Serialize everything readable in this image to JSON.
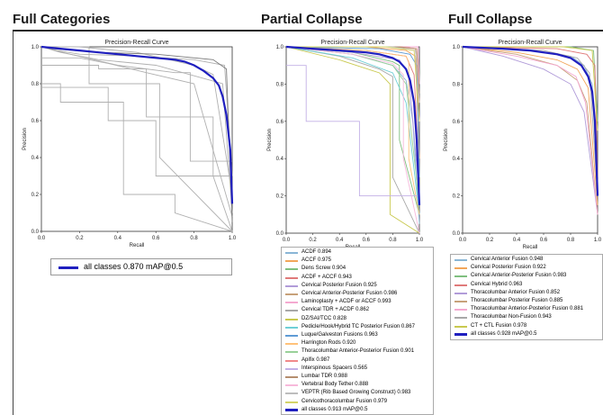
{
  "sections": [
    {
      "title": "Full Categories"
    },
    {
      "title": "Partial Collapse"
    },
    {
      "title": "Full Collapse"
    }
  ],
  "colors": {
    "accent": "#1f1fbf",
    "grey": "#b0b0b0",
    "dark": "#7a7a7a"
  },
  "chart_data": [
    {
      "type": "line",
      "title": "Precision-Recall Curve",
      "xlabel": "Recall",
      "ylabel": "Precision",
      "xlim": [
        0,
        1
      ],
      "ylim": [
        0,
        1
      ],
      "xticks": [
        "0.0",
        "0.2",
        "0.4",
        "0.6",
        "0.8",
        "1.0"
      ],
      "yticks": [
        "0.0",
        "0.2",
        "0.4",
        "0.6",
        "0.8",
        "1.0"
      ],
      "grid": false,
      "legend_placement": "below",
      "series": [
        {
          "name": "all classes 0.870 mAP@0.5",
          "color": "#1f1fbf",
          "emphasis": true,
          "x": [
            0,
            0.1,
            0.2,
            0.3,
            0.4,
            0.5,
            0.6,
            0.7,
            0.75,
            0.8,
            0.85,
            0.9,
            0.93,
            0.95,
            0.97,
            0.99,
            1.0
          ],
          "y": [
            1,
            0.99,
            0.98,
            0.97,
            0.96,
            0.95,
            0.94,
            0.93,
            0.92,
            0.9,
            0.87,
            0.83,
            0.79,
            0.73,
            0.63,
            0.44,
            0.15
          ]
        },
        {
          "color": "#b0b0b0",
          "x": [
            0,
            0.2,
            0.5,
            0.8,
            0.9,
            1.0
          ],
          "y": [
            1,
            1,
            0.97,
            0.9,
            0.85,
            0.2
          ]
        },
        {
          "color": "#b0b0b0",
          "x": [
            0,
            0.1,
            0.3,
            0.6,
            0.95,
            1.0
          ],
          "y": [
            1,
            0.97,
            0.93,
            0.9,
            0.8,
            0.1
          ]
        },
        {
          "color": "#b0b0b0",
          "x": [
            0,
            0.2,
            0.35,
            0.55,
            0.8,
            1.0
          ],
          "y": [
            0.94,
            0.94,
            0.91,
            0.86,
            0.8,
            0.08
          ]
        },
        {
          "color": "#b0b0b0",
          "x": [
            0,
            0.25,
            0.25,
            0.62,
            0.62,
            1.0
          ],
          "y": [
            1,
            1,
            0.8,
            0.8,
            0.4,
            0
          ]
        },
        {
          "color": "#b0b0b0",
          "x": [
            0,
            0.1,
            0.1,
            0.43,
            0.43,
            0.7,
            0.7,
            1.0
          ],
          "y": [
            0.8,
            0.8,
            0.7,
            0.7,
            0.2,
            0.2,
            0.1,
            0
          ]
        },
        {
          "color": "#b0b0b0",
          "x": [
            0,
            0.3,
            0.3,
            0.55,
            0.55,
            0.9,
            0.9,
            1.0
          ],
          "y": [
            0.9,
            0.9,
            0.88,
            0.88,
            0.62,
            0.62,
            0.3,
            0
          ]
        },
        {
          "color": "#b0b0b0",
          "x": [
            0,
            0.15,
            0.4,
            0.7,
            0.78,
            0.78,
            1.0
          ],
          "y": [
            1,
            0.96,
            0.9,
            0.86,
            0.86,
            0.38,
            0.38
          ]
        },
        {
          "color": "#b0b0b0",
          "x": [
            0,
            0.08,
            0.2,
            0.5,
            0.8,
            0.96,
            1.0
          ],
          "y": [
            1,
            0.98,
            0.96,
            0.95,
            0.93,
            0.9,
            0.3
          ]
        },
        {
          "color": "#7a7a7a",
          "x": [
            0,
            0.05,
            0.3,
            0.6,
            0.9,
            0.97,
            1.0
          ],
          "y": [
            1,
            0.99,
            0.97,
            0.96,
            0.93,
            0.88,
            0.05
          ]
        },
        {
          "color": "#b0b0b0",
          "x": [
            0,
            0.35,
            0.35,
            0.6,
            0.6,
            1.0
          ],
          "y": [
            0.78,
            0.78,
            0.6,
            0.6,
            0.3,
            0.3
          ]
        }
      ]
    },
    {
      "type": "line",
      "title": "Precision-Recall Curve",
      "xlabel": "Recall",
      "ylabel": "Precision",
      "xlim": [
        0,
        1
      ],
      "ylim": [
        0,
        1
      ],
      "xticks": [
        "0.0",
        "0.2",
        "0.4",
        "0.6",
        "0.8",
        "1.0"
      ],
      "yticks": [
        "0.0",
        "0.2",
        "0.4",
        "0.6",
        "0.8",
        "1.0"
      ],
      "grid": false,
      "legend_placement": "below",
      "series": [
        {
          "name": "ACDF 0.894",
          "color": "#8ab6d6",
          "x": [
            0,
            0.5,
            0.8,
            0.9,
            0.95,
            1.0
          ],
          "y": [
            1,
            0.96,
            0.9,
            0.82,
            0.6,
            0.05
          ]
        },
        {
          "name": "ACCF 0.975",
          "color": "#f2a65a",
          "x": [
            0,
            0.6,
            0.9,
            0.97,
            1.0
          ],
          "y": [
            1,
            1,
            0.98,
            0.95,
            0.4
          ]
        },
        {
          "name": "Dens Screw 0.904",
          "color": "#7fbf7f",
          "x": [
            0,
            0.5,
            0.8,
            0.85,
            0.85,
            1.0
          ],
          "y": [
            1,
            0.97,
            0.92,
            0.9,
            0.5,
            0.1
          ]
        },
        {
          "name": "ACDF + ACCF 0.943",
          "color": "#e07a7a",
          "x": [
            0,
            0.6,
            0.9,
            0.96,
            1.0
          ],
          "y": [
            1,
            0.98,
            0.95,
            0.85,
            0.3
          ]
        },
        {
          "name": "Cervical Posterior Fusion 0.925",
          "color": "#b19cd9",
          "x": [
            0,
            0.5,
            0.85,
            0.92,
            1.0
          ],
          "y": [
            1,
            0.97,
            0.93,
            0.85,
            0.2
          ]
        },
        {
          "name": "Cervical Anterior-Posterior Fusion 0.986",
          "color": "#c7a17a",
          "x": [
            0,
            0.8,
            0.97,
            1.0
          ],
          "y": [
            1,
            1,
            0.99,
            0.6
          ]
        },
        {
          "name": "Laminoplasty + ACDF or ACCF 0.993",
          "color": "#f4a9d0",
          "x": [
            0,
            0.9,
            0.99,
            1.0
          ],
          "y": [
            1,
            1,
            1,
            0.8
          ]
        },
        {
          "name": "Cervical TDR + ACDF 0.862",
          "color": "#a8a8a8",
          "x": [
            0,
            0.4,
            0.7,
            0.8,
            0.8,
            1.0
          ],
          "y": [
            1,
            0.95,
            0.88,
            0.84,
            0.3,
            0
          ]
        },
        {
          "name": "DZ/SAI/TCC 0.828",
          "color": "#c9c94f",
          "x": [
            0,
            0.4,
            0.7,
            0.78,
            0.78,
            1.0
          ],
          "y": [
            1,
            0.93,
            0.86,
            0.8,
            0.1,
            0
          ]
        },
        {
          "name": "Pedicle/Hook/Hybrid TC Posterior Fusion 0.867",
          "color": "#6fcfd6",
          "x": [
            0,
            0.5,
            0.8,
            0.9,
            1.0
          ],
          "y": [
            1,
            0.94,
            0.86,
            0.7,
            0.1
          ]
        },
        {
          "name": "Luque/Galveston Fusions 0.963",
          "color": "#5f9bd5",
          "x": [
            0,
            0.7,
            0.93,
            0.98,
            1.0
          ],
          "y": [
            1,
            0.99,
            0.96,
            0.9,
            0.3
          ]
        },
        {
          "name": "Harrington Rods 0.920",
          "color": "#ffc27a",
          "x": [
            0,
            0.6,
            0.9,
            0.92,
            0.92,
            1.0
          ],
          "y": [
            1,
            0.98,
            0.95,
            0.92,
            0.4,
            0.1
          ]
        },
        {
          "name": "Thoracolumbar Anterior-Posterior Fusion 0.901",
          "color": "#9ad19a",
          "x": [
            0,
            0.5,
            0.8,
            0.9,
            1.0
          ],
          "y": [
            1,
            0.96,
            0.9,
            0.8,
            0.15
          ]
        },
        {
          "name": "Apifix 0.987",
          "color": "#f08a8a",
          "x": [
            0,
            0.85,
            0.98,
            1.0
          ],
          "y": [
            1,
            1,
            0.99,
            0.7
          ]
        },
        {
          "name": "Interspinous Spacers 0.565",
          "color": "#c2b0e6",
          "x": [
            0,
            0.15,
            0.15,
            0.55,
            0.55,
            1.0
          ],
          "y": [
            0.9,
            0.9,
            0.6,
            0.6,
            0.2,
            0.2
          ]
        },
        {
          "name": "Lumbar TDR 0.988",
          "color": "#b58e6f",
          "x": [
            0,
            0.85,
            0.98,
            1.0
          ],
          "y": [
            1,
            1,
            0.99,
            0.75
          ]
        },
        {
          "name": "Vertebral Body Tether 0.888",
          "color": "#f7b9db",
          "x": [
            0,
            0.5,
            0.8,
            0.88,
            0.88,
            1.0
          ],
          "y": [
            1,
            0.96,
            0.91,
            0.85,
            0.4,
            0
          ]
        },
        {
          "name": "VEPTR (Rib Based Growing Construct) 0.983",
          "color": "#bdbdbd",
          "x": [
            0,
            0.8,
            0.97,
            1.0
          ],
          "y": [
            1,
            1,
            0.98,
            0.7
          ]
        },
        {
          "name": "Cervicothoracolumbar Fusion 0.979",
          "color": "#d4d468",
          "x": [
            0,
            0.75,
            0.96,
            1.0
          ],
          "y": [
            1,
            1,
            0.98,
            0.6
          ]
        },
        {
          "name": "all classes 0.913 mAP@0.5",
          "color": "#1f1fbf",
          "emphasis": true,
          "x": [
            0,
            0.2,
            0.4,
            0.6,
            0.7,
            0.8,
            0.85,
            0.9,
            0.93,
            0.96,
            0.98,
            1.0
          ],
          "y": [
            1,
            0.99,
            0.98,
            0.97,
            0.96,
            0.94,
            0.92,
            0.88,
            0.82,
            0.7,
            0.5,
            0.15
          ]
        }
      ]
    },
    {
      "type": "line",
      "title": "Precision-Recall Curve",
      "xlabel": "Recall",
      "ylabel": "Precision",
      "xlim": [
        0,
        1
      ],
      "ylim": [
        0,
        1
      ],
      "xticks": [
        "0.0",
        "0.2",
        "0.4",
        "0.6",
        "0.8",
        "1.0"
      ],
      "yticks": [
        "0.0",
        "0.2",
        "0.4",
        "0.6",
        "0.8",
        "1.0"
      ],
      "grid": false,
      "legend_placement": "below",
      "series": [
        {
          "name": "Cervical Anterior Fusion 0.948",
          "color": "#8ab6d6",
          "x": [
            0,
            0.5,
            0.8,
            0.9,
            0.96,
            1.0
          ],
          "y": [
            1,
            0.98,
            0.95,
            0.9,
            0.8,
            0.2
          ]
        },
        {
          "name": "Cervical Posterior Fusion 0.922",
          "color": "#f2a65a",
          "x": [
            0,
            0.4,
            0.7,
            0.85,
            0.93,
            1.0
          ],
          "y": [
            1,
            0.97,
            0.93,
            0.88,
            0.78,
            0.15
          ]
        },
        {
          "name": "Cervical Anterior-Posterior Fusion 0.983",
          "color": "#7fbf7f",
          "x": [
            0,
            0.8,
            0.97,
            1.0
          ],
          "y": [
            1,
            1,
            0.98,
            0.6
          ]
        },
        {
          "name": "Cervical Hybrid 0.963",
          "color": "#e07a7a",
          "x": [
            0,
            0.7,
            0.92,
            0.98,
            1.0
          ],
          "y": [
            1,
            0.99,
            0.96,
            0.9,
            0.3
          ]
        },
        {
          "name": "Thoracolumbar Anterior Fusion 0.852",
          "color": "#b19cd9",
          "x": [
            0,
            0.3,
            0.6,
            0.8,
            0.9,
            1.0
          ],
          "y": [
            1,
            0.95,
            0.88,
            0.8,
            0.65,
            0.1
          ]
        },
        {
          "name": "Thoracolumbar Posterior Fusion 0.885",
          "color": "#c7a17a",
          "x": [
            0,
            0.4,
            0.7,
            0.85,
            0.92,
            1.0
          ],
          "y": [
            1,
            0.96,
            0.9,
            0.82,
            0.7,
            0.1
          ]
        },
        {
          "name": "Thoracolumbar Anterior-Posterior Fusion 0.881",
          "color": "#f4a9d0",
          "x": [
            0,
            0.4,
            0.7,
            0.84,
            0.91,
            1.0
          ],
          "y": [
            1,
            0.95,
            0.9,
            0.84,
            0.7,
            0.1
          ]
        },
        {
          "name": "Thoracolumbar Non-Fusion 0.943",
          "color": "#a8a8a8",
          "x": [
            0,
            0.6,
            0.85,
            0.94,
            1.0
          ],
          "y": [
            1,
            0.98,
            0.94,
            0.86,
            0.2
          ]
        },
        {
          "name": "CT + CTL Fusion 0.978",
          "color": "#c9c94f",
          "x": [
            0,
            0.75,
            0.96,
            1.0
          ],
          "y": [
            1,
            1,
            0.98,
            0.55
          ]
        },
        {
          "name": "all classes 0.928 mAP@0.5",
          "color": "#1f1fbf",
          "emphasis": true,
          "x": [
            0,
            0.3,
            0.5,
            0.7,
            0.8,
            0.88,
            0.93,
            0.96,
            0.98,
            1.0
          ],
          "y": [
            1,
            0.99,
            0.98,
            0.96,
            0.94,
            0.9,
            0.84,
            0.76,
            0.6,
            0.2
          ]
        }
      ]
    }
  ]
}
